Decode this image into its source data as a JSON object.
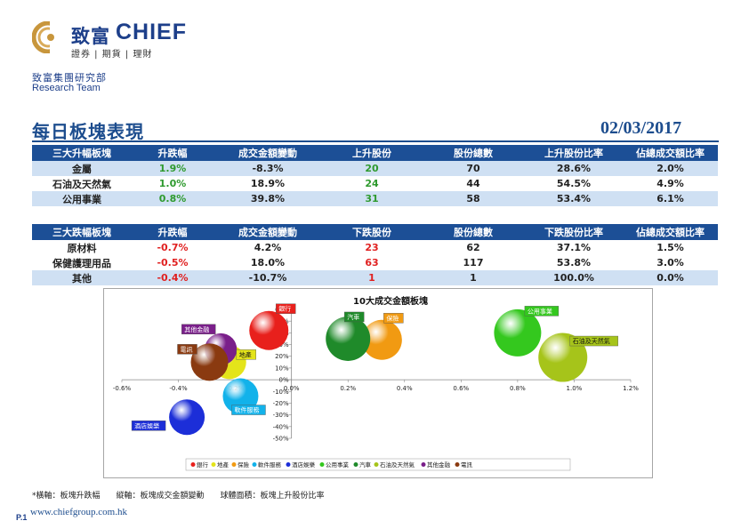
{
  "header": {
    "brand_cn": "致富",
    "brand_en": "CHIEF",
    "brand_sub": "證券 | 期貨 | 理財",
    "team_cn": "致富集團研究部",
    "team_en": "Research Team"
  },
  "title": "每日板塊表現",
  "date": "02/03/2017",
  "top_table": {
    "headers": [
      "三大升幅板塊",
      "升跌幅",
      "成交金額變動",
      "上升股份",
      "股份總數",
      "上升股份比率",
      "佔總成交額比率"
    ],
    "rows": [
      [
        "金屬",
        "1.9%",
        "-8.3%",
        "20",
        "70",
        "28.6%",
        "2.0%"
      ],
      [
        "石油及天然氣",
        "1.0%",
        "18.9%",
        "24",
        "44",
        "54.5%",
        "4.9%"
      ],
      [
        "公用事業",
        "0.8%",
        "39.8%",
        "31",
        "58",
        "53.4%",
        "6.1%"
      ]
    ]
  },
  "bottom_table": {
    "headers": [
      "三大跌幅板塊",
      "升跌幅",
      "成交金額變動",
      "下跌股份",
      "股份總數",
      "下跌股份比率",
      "佔總成交額比率"
    ],
    "rows": [
      [
        "原材料",
        "-0.7%",
        "4.2%",
        "23",
        "62",
        "37.1%",
        "1.5%"
      ],
      [
        "保健護理用品",
        "-0.5%",
        "18.0%",
        "63",
        "117",
        "53.8%",
        "3.0%"
      ],
      [
        "其他",
        "-0.4%",
        "-10.7%",
        "1",
        "1",
        "100.0%",
        "0.0%"
      ]
    ]
  },
  "colors": {
    "header_bg": "#1c4f96",
    "row_alt": "#cfe0f3",
    "up": "#2e9a2e",
    "down": "#e02020",
    "title": "#1d4d8e"
  },
  "chart_data": {
    "type": "scatter",
    "title": "10大成交金額板塊",
    "xlim": [
      -0.6,
      1.2
    ],
    "ylim": [
      -50,
      60
    ],
    "x_ticks": [
      "-0.6%",
      "-0.4%",
      "-0.2%",
      "0.0%",
      "0.2%",
      "0.4%",
      "0.6%",
      "0.8%",
      "1.0%",
      "1.2%"
    ],
    "y_ticks": [
      "60%",
      "50%",
      "40%",
      "30%",
      "20%",
      "10%",
      "0%",
      "-10%",
      "-20%",
      "-30%",
      "-40%",
      "-50%"
    ],
    "grid": false,
    "legend_position": "bottom",
    "series": [
      {
        "name": "銀行",
        "x": -0.08,
        "y": 42,
        "size": 44,
        "color": "#e8201c"
      },
      {
        "name": "地產",
        "x": -0.22,
        "y": 15,
        "size": 38,
        "color": "#e4e41a"
      },
      {
        "name": "保險",
        "x": 0.32,
        "y": 34,
        "size": 45,
        "color": "#f19a12"
      },
      {
        "name": "軟件服務",
        "x": -0.18,
        "y": -14,
        "size": 40,
        "color": "#12b2ea"
      },
      {
        "name": "酒店娛樂",
        "x": -0.37,
        "y": -32,
        "size": 40,
        "color": "#1c2ed8"
      },
      {
        "name": "公用事業",
        "x": 0.8,
        "y": 40,
        "size": 53,
        "color": "#34c81e"
      },
      {
        "name": "汽車",
        "x": 0.2,
        "y": 35,
        "size": 50,
        "color": "#1f8a2a"
      },
      {
        "name": "石油及天然氣",
        "x": 0.96,
        "y": 19,
        "size": 55,
        "color": "#a6c41a"
      },
      {
        "name": "其他金融",
        "x": -0.25,
        "y": 26,
        "size": 36,
        "color": "#7a1f8a"
      },
      {
        "name": "電訊",
        "x": -0.29,
        "y": 15,
        "size": 42,
        "color": "#8a3a10"
      }
    ],
    "legend": [
      "銀行",
      "地產",
      "保險",
      "軟件服務",
      "酒店娛樂",
      "公用事業",
      "汽車",
      "石油及天然氣",
      "其他金融",
      "電訊"
    ]
  },
  "footnote": "*橫軸：板塊升跌幅　　縱軸：板塊成交金額變動　　球體面積：板塊上升股份比率",
  "page_num": "P.1",
  "website": "www.chiefgroup.com.hk"
}
